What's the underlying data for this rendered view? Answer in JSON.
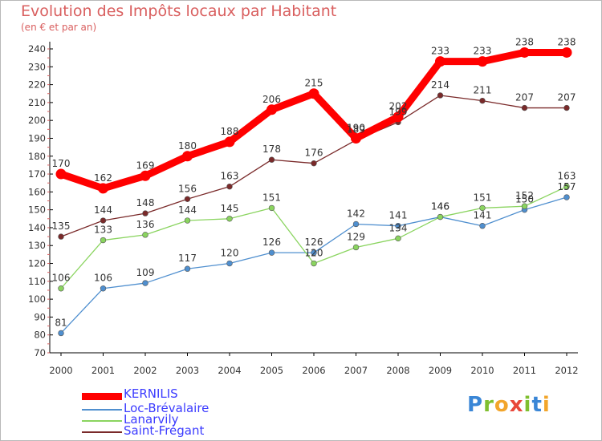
{
  "title": "Evolution des Impôts locaux par Habitant",
  "subtitle": "(en € et par an)",
  "logo": "Proxiti",
  "chart_data": {
    "type": "line",
    "x": [
      "2000",
      "2001",
      "2002",
      "2003",
      "2004",
      "2005",
      "2006",
      "2007",
      "2008",
      "2009",
      "2010",
      "2011",
      "2012"
    ],
    "ylim": [
      70,
      240
    ],
    "yticks": [
      70,
      80,
      90,
      100,
      110,
      120,
      130,
      140,
      150,
      160,
      170,
      180,
      190,
      200,
      210,
      220,
      230,
      240
    ],
    "grid": "none",
    "legend_position": "bottom-left",
    "series": [
      {
        "name": "KERNILIS",
        "color": "#ff0000",
        "values": [
          170,
          162,
          169,
          180,
          188,
          206,
          215,
          190,
          202,
          233,
          233,
          238,
          238
        ]
      },
      {
        "name": "Loc-Brévalaire",
        "color": "#4f8fcf",
        "values": [
          81,
          106,
          109,
          117,
          120,
          126,
          126,
          142,
          141,
          146,
          141,
          150,
          157
        ]
      },
      {
        "name": "Lanarvily",
        "color": "#8ad45f",
        "values": [
          106,
          133,
          136,
          144,
          145,
          151,
          120,
          129,
          134,
          146,
          151,
          152,
          163
        ]
      },
      {
        "name": "Saint-Frégant",
        "color": "#7a2a2a",
        "values": [
          135,
          144,
          148,
          156,
          163,
          178,
          176,
          189,
          199,
          214,
          211,
          207,
          207
        ]
      }
    ]
  }
}
